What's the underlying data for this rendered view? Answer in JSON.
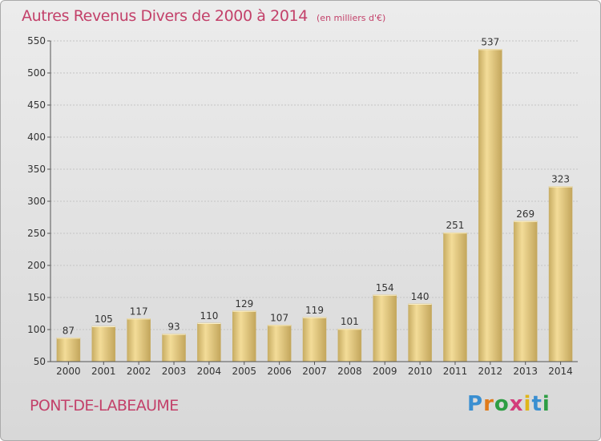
{
  "header": {
    "title": "Autres Revenus Divers de 2000 à 2014",
    "subtitle": "(en milliers d'€)"
  },
  "footer": {
    "city": "PONT-DE-LABEAUME",
    "logo_letters": [
      "P",
      "r",
      "o",
      "x",
      "i",
      "t",
      "i"
    ]
  },
  "colors": {
    "accent": "#c3416a",
    "bar_light": "#f3dc98",
    "bar_dark": "#c8ad63"
  },
  "chart_data": {
    "type": "bar",
    "categories": [
      "2000",
      "2001",
      "2002",
      "2003",
      "2004",
      "2005",
      "2006",
      "2007",
      "2008",
      "2009",
      "2010",
      "2011",
      "2012",
      "2013",
      "2014"
    ],
    "values": [
      87,
      105,
      117,
      93,
      110,
      129,
      107,
      119,
      101,
      154,
      140,
      251,
      537,
      269,
      323
    ],
    "ylim": [
      50,
      550
    ],
    "yticks": [
      50,
      100,
      150,
      200,
      250,
      300,
      350,
      400,
      450,
      500,
      550
    ],
    "grid": true
  }
}
